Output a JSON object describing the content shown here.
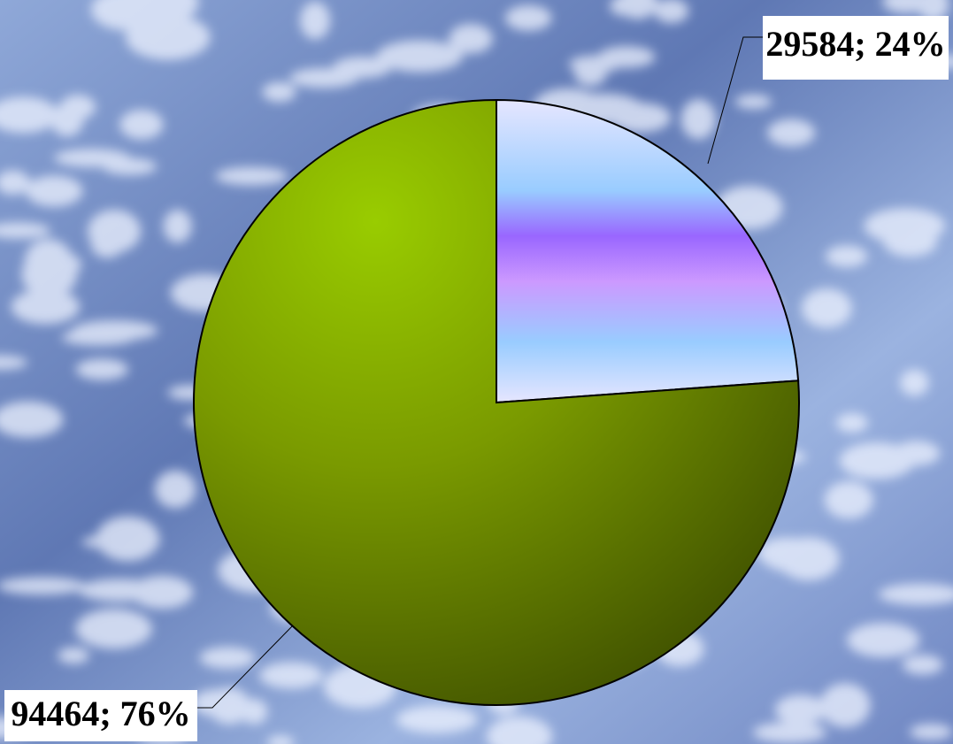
{
  "chart_data": {
    "type": "pie",
    "values": [
      29584,
      94464
    ],
    "value_labels": [
      "29584; 24%",
      "94464; 76%"
    ],
    "colors": [
      "#9966ff",
      "#7a9a00"
    ]
  }
}
